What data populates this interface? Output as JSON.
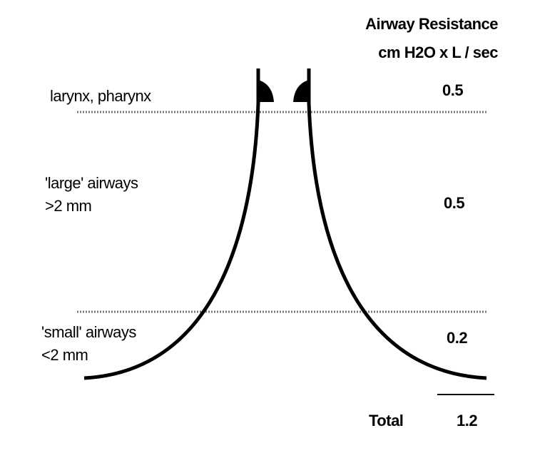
{
  "header": {
    "title_line1": "Airway Resistance",
    "title_line2": "cm H2O x L / sec"
  },
  "zones": [
    {
      "label_line1": "larynx, pharynx",
      "label_line2": "",
      "value": "0.5"
    },
    {
      "label_line1": "'large' airways",
      "label_line2": ">2 mm",
      "value": "0.5"
    },
    {
      "label_line1": "'small' airways",
      "label_line2": "<2 mm",
      "value": "0.2"
    }
  ],
  "total": {
    "label": "Total",
    "value": "1.2"
  },
  "colors": {
    "ink": "#000000",
    "divider": "#777777",
    "background": "#ffffff"
  }
}
